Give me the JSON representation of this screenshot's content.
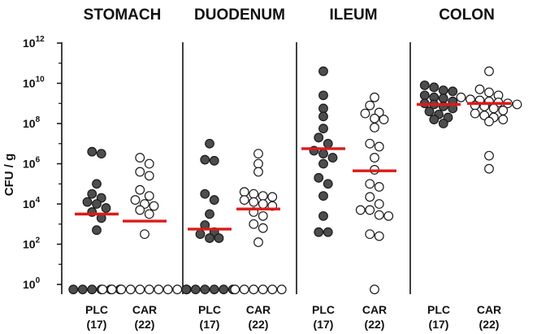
{
  "chart_data": {
    "type": "scatter",
    "subtype": "dot-plot-with-medians",
    "ylabel": "CFU / g",
    "yscale": "log10",
    "ylim_exponents": [
      0,
      12
    ],
    "yticks": [
      {
        "base": "10",
        "exp": "12",
        "value": 12
      },
      {
        "base": "10",
        "exp": "10",
        "value": 10
      },
      {
        "base": "10",
        "exp": "8",
        "value": 8
      },
      {
        "base": "10",
        "exp": "6",
        "value": 6
      },
      {
        "base": "10",
        "exp": "4",
        "value": 4
      },
      {
        "base": "10",
        "exp": "2",
        "value": 2
      },
      {
        "base": "10",
        "exp": "0",
        "value": 0
      }
    ],
    "colors": {
      "plc_fill": "#4d4d4d",
      "car_fill": "#ffffff",
      "marker_stroke": "#1a1a1a",
      "median": "#dd1a1a"
    },
    "panels": [
      {
        "title": "STOMACH",
        "groups": [
          {
            "label": "PLC",
            "n_label": "(17)",
            "fill": "plc",
            "median": 3.5,
            "values": [
              6.6,
              6.5,
              5.0,
              4.5,
              4.3,
              4.1,
              4.0,
              3.8,
              3.6,
              3.3,
              2.7,
              -0.25,
              -0.25,
              -0.25,
              -0.25,
              -0.25,
              -0.25
            ]
          },
          {
            "label": "CAR",
            "n_label": "(22)",
            "fill": "car",
            "median": 3.15,
            "values": [
              6.3,
              6.0,
              5.6,
              5.4,
              4.7,
              4.4,
              4.2,
              4.0,
              3.9,
              3.7,
              3.5,
              2.5,
              -0.25,
              -0.25,
              -0.25,
              -0.25,
              -0.25,
              -0.25,
              -0.25,
              -0.25,
              -0.25,
              -0.25
            ]
          }
        ]
      },
      {
        "title": "DUODENUM",
        "groups": [
          {
            "label": "PLC",
            "n_label": "(17)",
            "fill": "plc",
            "median": 2.75,
            "values": [
              7.0,
              6.2,
              6.15,
              4.5,
              4.2,
              3.5,
              2.95,
              2.6,
              2.5,
              2.3,
              2.3,
              -0.25,
              -0.25,
              -0.25,
              -0.25,
              -0.25,
              -0.25
            ]
          },
          {
            "label": "CAR",
            "n_label": "(22)",
            "fill": "car",
            "median": 3.75,
            "values": [
              6.5,
              6.0,
              5.6,
              4.6,
              4.5,
              4.4,
              4.35,
              4.2,
              4.1,
              4.0,
              3.9,
              3.6,
              3.4,
              3.0,
              2.8,
              2.1,
              -0.25,
              -0.25,
              -0.25,
              -0.25,
              -0.25,
              -0.25
            ]
          }
        ]
      },
      {
        "title": "ILEUM",
        "groups": [
          {
            "label": "PLC",
            "n_label": "(17)",
            "fill": "plc",
            "median": 6.75,
            "values": [
              10.6,
              9.4,
              8.75,
              8.35,
              7.75,
              7.3,
              7.0,
              6.65,
              6.5,
              6.3,
              6.0,
              5.3,
              5.0,
              4.4,
              3.4,
              2.6,
              2.6
            ]
          },
          {
            "label": "CAR",
            "n_label": "(22)",
            "fill": "car",
            "median": 5.65,
            "values": [
              9.3,
              8.9,
              8.55,
              8.5,
              8.25,
              8.2,
              7.8,
              7.0,
              6.85,
              6.3,
              5.7,
              5.0,
              4.85,
              4.35,
              4.0,
              3.7,
              3.7,
              3.45,
              3.4,
              2.5,
              2.4,
              -0.25
            ]
          }
        ]
      },
      {
        "title": "COLON",
        "groups": [
          {
            "label": "PLC",
            "n_label": "(17)",
            "fill": "plc",
            "median": 8.95,
            "values": [
              9.9,
              9.8,
              9.65,
              9.6,
              9.4,
              9.3,
              9.25,
              9.1,
              9.0,
              8.95,
              8.85,
              8.75,
              8.6,
              8.45,
              8.3,
              8.2,
              8.0
            ]
          },
          {
            "label": "CAR",
            "n_label": "(22)",
            "fill": "car",
            "median": 9.0,
            "values": [
              10.6,
              9.7,
              9.55,
              9.4,
              9.3,
              9.2,
              9.15,
              9.1,
              9.05,
              9.0,
              8.95,
              8.9,
              8.85,
              8.75,
              8.65,
              8.5,
              8.4,
              8.3,
              8.2,
              8.1,
              6.4,
              5.75
            ]
          }
        ]
      }
    ]
  }
}
